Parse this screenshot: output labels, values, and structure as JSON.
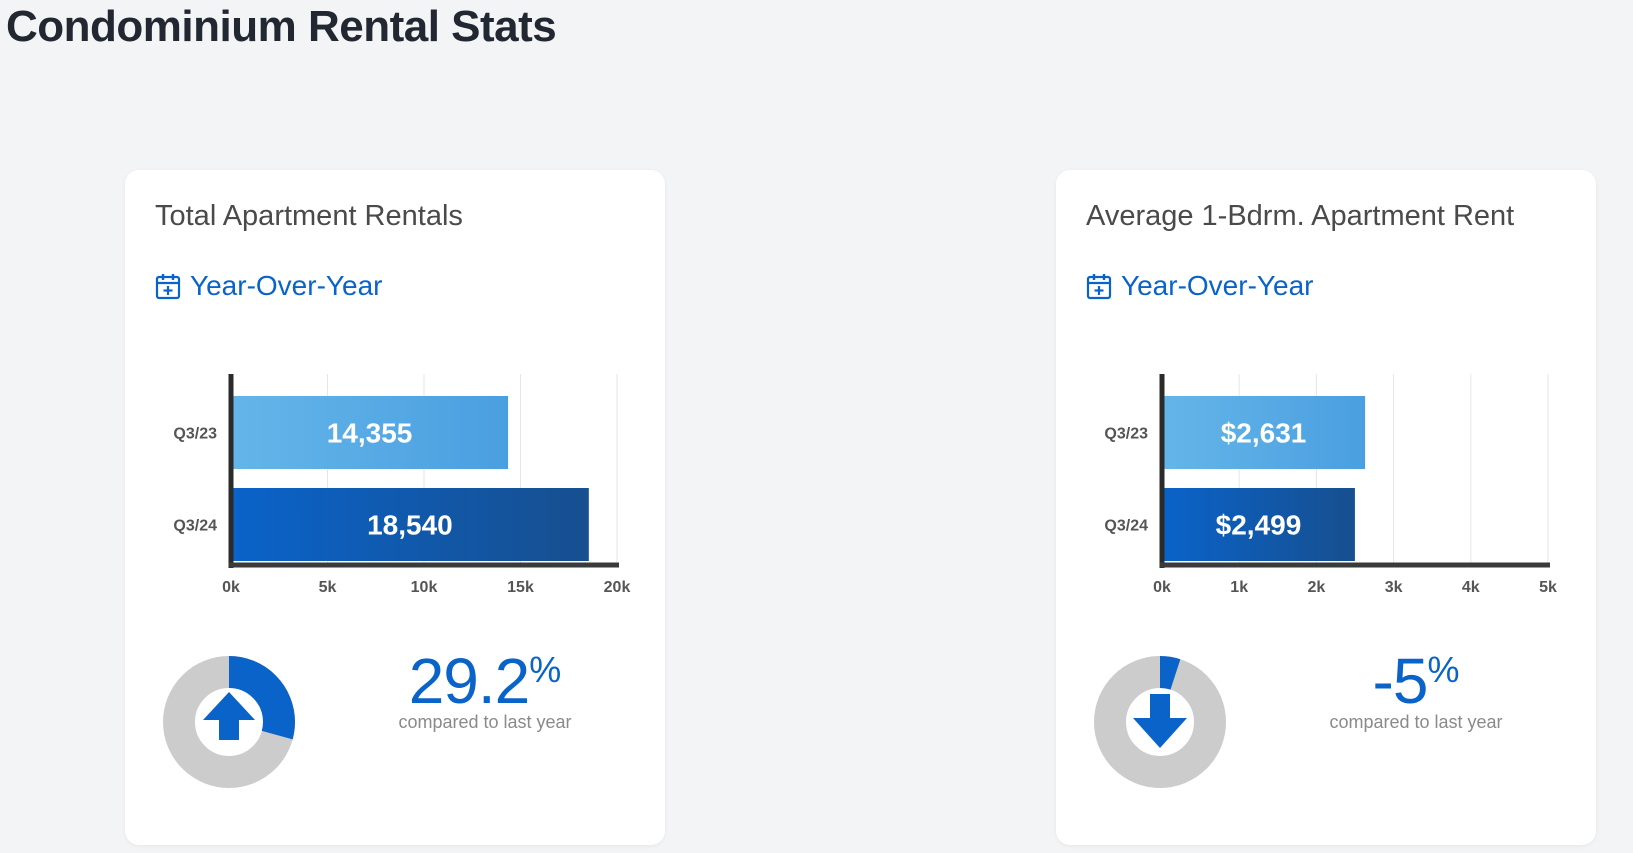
{
  "page": {
    "title": "Condominium Rental Stats"
  },
  "colors": {
    "accent": "#0a63c9",
    "bar_prev_from": "#64b5e8",
    "bar_prev_to": "#4a9fe0",
    "bar_curr_from": "#0a63c9",
    "bar_curr_to": "#174f8f",
    "donut_track": "#cccccc"
  },
  "cards": [
    {
      "title": "Total Apartment Rentals",
      "period_label": "Year-Over-Year",
      "period_icon": "calendar-plus-icon",
      "change": {
        "value": "29.2",
        "unit": "%",
        "caption": "compared to last year",
        "direction": "up",
        "arrow_icon": "arrow-up-icon"
      }
    },
    {
      "title": "Average 1-Bdrm. Apartment Rent",
      "period_label": "Year-Over-Year",
      "period_icon": "calendar-plus-icon",
      "change": {
        "value": "-5",
        "unit": "%",
        "caption": "compared to last year",
        "direction": "down",
        "arrow_icon": "arrow-down-icon"
      }
    }
  ],
  "chart_data": [
    {
      "type": "bar",
      "orientation": "horizontal",
      "categories": [
        "Q3/23",
        "Q3/24"
      ],
      "values": [
        14355,
        18540
      ],
      "value_labels": [
        "14,355",
        "18,540"
      ],
      "xlim": [
        0,
        20000
      ],
      "xticks": [
        0,
        5000,
        10000,
        15000,
        20000
      ],
      "xtick_labels": [
        "0k",
        "5k",
        "10k",
        "15k",
        "20k"
      ],
      "grid": true,
      "donut_fraction": 0.292
    },
    {
      "type": "bar",
      "orientation": "horizontal",
      "categories": [
        "Q3/23",
        "Q3/24"
      ],
      "values": [
        2631,
        2499
      ],
      "value_labels": [
        "$2,631",
        "$2,499"
      ],
      "xlim": [
        0,
        5000
      ],
      "xticks": [
        0,
        1000,
        2000,
        3000,
        4000,
        5000
      ],
      "xtick_labels": [
        "0k",
        "1k",
        "2k",
        "3k",
        "4k",
        "5k"
      ],
      "grid": true,
      "donut_fraction": 0.05
    }
  ]
}
